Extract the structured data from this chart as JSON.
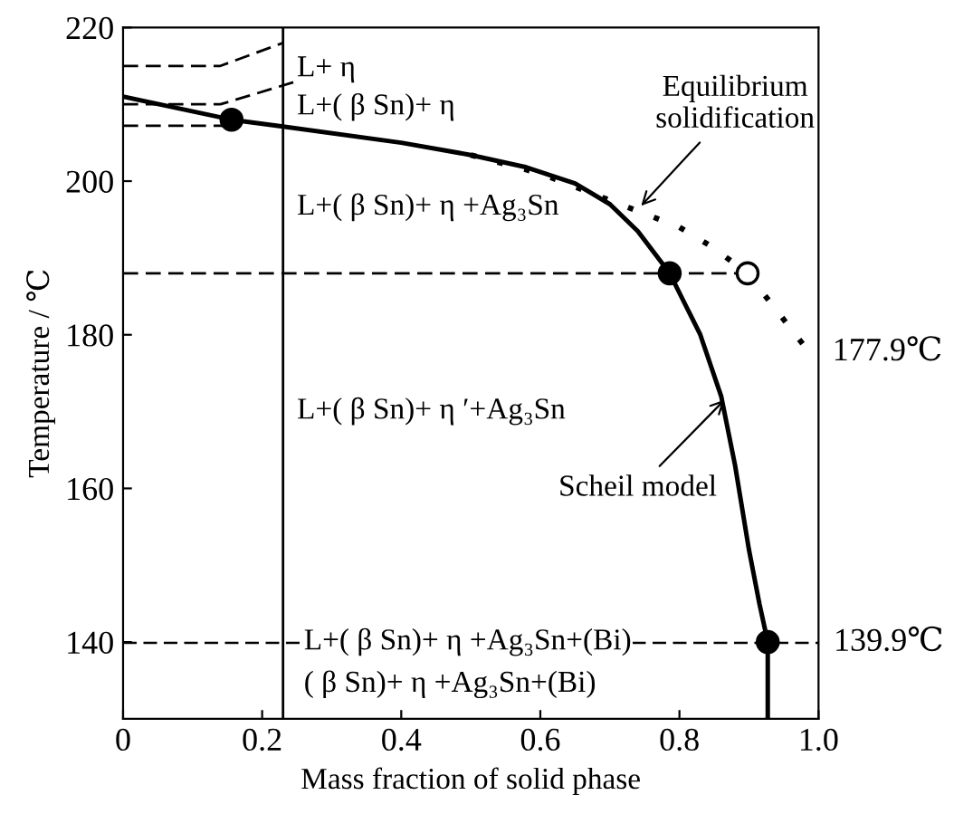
{
  "chart_data": {
    "type": "line",
    "xlabel": "Mass fraction of solid phase",
    "ylabel": "Temperature / ℃",
    "xlim": [
      0,
      1.0
    ],
    "ylim": [
      130,
      220
    ],
    "xticks": [
      0,
      {
        "value": 0.2,
        "label": "0.2"
      },
      {
        "value": 0.4,
        "label": "0.4"
      },
      {
        "value": 0.6,
        "label": "0.6"
      },
      {
        "value": 0.8,
        "label": "0.8"
      },
      {
        "value": 1.0,
        "label": "1.0"
      }
    ],
    "yticks": [
      140,
      160,
      180,
      200,
      220
    ],
    "grid": false,
    "legend": false,
    "series": [
      {
        "color": "#000000",
        "line_style": "solid",
        "marker": "none",
        "x": [
          0,
          0.156,
          0.23,
          0.4,
          0.5,
          0.58,
          0.65,
          0.7,
          0.74,
          0.786,
          0.83,
          0.86,
          0.88,
          0.9,
          0.915,
          0.927,
          0.927
        ],
        "values": [
          211,
          208,
          207.1,
          205,
          203.4,
          201.8,
          199.7,
          197,
          193.5,
          188,
          180,
          172,
          163,
          152,
          145,
          140,
          130
        ]
      },
      {
        "color": "#000000",
        "line_style": "dotted",
        "marker": "none",
        "x": [
          0.5,
          0.6,
          0.7,
          0.8,
          0.846,
          0.898,
          0.98
        ],
        "values": [
          203.4,
          201,
          197.5,
          194,
          191.5,
          188,
          178.5
        ]
      },
      {
        "type": "scatter",
        "marker": "circle",
        "colors": [
          "#000000",
          "#000000",
          "#000000",
          "#ffffff"
        ],
        "x": [
          0.156,
          0.786,
          0.927,
          0.898
        ],
        "values": [
          208,
          188,
          140,
          188
        ]
      },
      {
        "color": "#000000",
        "line_style": "dashed",
        "marker": "none",
        "x": [
          0,
          0.14,
          0.23
        ],
        "values": [
          215,
          215,
          218
        ]
      },
      {
        "color": "#000000",
        "line_style": "dashed",
        "marker": "none",
        "x": [
          0,
          0.14,
          0.25
        ],
        "values": [
          210,
          210,
          213
        ]
      },
      {
        "color": "#000000",
        "line_style": "dashed",
        "marker": "none",
        "x": [
          0,
          0.156
        ],
        "values": [
          207.2,
          207.2
        ]
      },
      {
        "color": "#000000",
        "line_style": "dashed",
        "marker": "none",
        "x": [
          0,
          0.898
        ],
        "values": [
          188,
          188
        ]
      }
    ],
    "ref_lines": [
      {
        "axis": "x",
        "value": 0.23,
        "line_style": "solid",
        "color": "#000000"
      },
      {
        "axis": "y",
        "value": 139.9,
        "label": "139.9℃",
        "line_style": "dashed",
        "color": "#000000"
      }
    ],
    "annotations": [
      "L+ η",
      "L+( β Sn)+ η",
      "L+( β Sn)+ η +Ag₃Sn",
      "L+( β Sn)+ η ′+Ag₃Sn",
      {
        "text": "L+( β Sn)+ η +Ag₃Sn+(Bi)",
        "x": 0.26,
        "y": 140
      },
      "( β Sn)+ η +Ag₃Sn+(Bi)",
      {
        "text": "Equilibrium\nsolidification",
        "x": 0.74,
        "y": 196.3
      },
      {
        "text": "Scheil model",
        "x": 0.87,
        "y": 172
      },
      "177.9℃"
    ]
  }
}
